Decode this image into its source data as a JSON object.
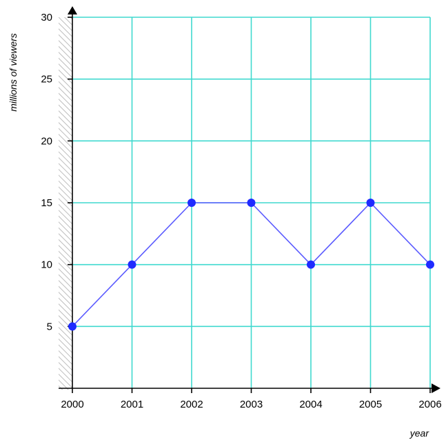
{
  "chart_data": {
    "type": "line",
    "xlabel": "year",
    "ylabel": "millions of viewers",
    "x": [
      2000,
      2001,
      2002,
      2003,
      2004,
      2005,
      2006
    ],
    "x_tick_labels": [
      "2000",
      "2001",
      "2002",
      "2003",
      "2004",
      "2005",
      "2006"
    ],
    "y_tick_values": [
      5,
      10,
      15,
      20,
      25,
      30
    ],
    "y_tick_labels": [
      "5",
      "10",
      "15",
      "20",
      "25",
      "30"
    ],
    "xlim": [
      2000,
      2006
    ],
    "ylim": [
      0,
      30
    ],
    "grid": true,
    "series": [
      {
        "values": [
          5,
          10,
          15,
          15,
          10,
          15,
          10
        ]
      }
    ],
    "colors": {
      "grid": "#3fd9cf",
      "line": "#5a5aff",
      "point": "#1f2bff",
      "axis": "#000000"
    }
  }
}
